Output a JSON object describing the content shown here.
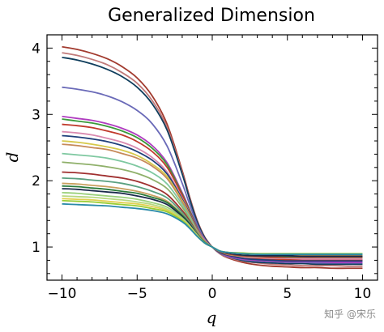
{
  "chart_data": {
    "type": "line",
    "title": "Generalized Dimension",
    "xlabel": "q",
    "ylabel": "d",
    "xlim": [
      -11,
      11
    ],
    "ylim": [
      0.5,
      4.2
    ],
    "xticks": [
      -10,
      -5,
      0,
      5,
      10
    ],
    "xtick_labels": [
      "−10",
      "−5",
      "0",
      "5",
      "10"
    ],
    "yticks": [
      1,
      2,
      3,
      4
    ],
    "ytick_labels": [
      "1",
      "2",
      "3",
      "4"
    ],
    "grid": false,
    "legend": "none",
    "x": [
      -10,
      -9,
      -8,
      -7,
      -6,
      -5,
      -4,
      -3,
      -2,
      -1.5,
      -1,
      -0.5,
      0,
      0.5,
      1,
      2,
      3,
      4,
      5,
      6,
      7,
      8,
      9,
      10
    ],
    "series": [
      {
        "color": "#a23a2e",
        "values": [
          4.02,
          3.98,
          3.92,
          3.84,
          3.72,
          3.55,
          3.28,
          2.85,
          2.15,
          1.75,
          1.4,
          1.15,
          1.0,
          0.9,
          0.84,
          0.77,
          0.73,
          0.71,
          0.7,
          0.69,
          0.69,
          0.68,
          0.68,
          0.68
        ]
      },
      {
        "color": "#c07a7a",
        "values": [
          3.93,
          3.89,
          3.83,
          3.75,
          3.63,
          3.47,
          3.21,
          2.8,
          2.12,
          1.73,
          1.39,
          1.14,
          1.0,
          0.9,
          0.85,
          0.79,
          0.76,
          0.74,
          0.73,
          0.72,
          0.72,
          0.72,
          0.71,
          0.71
        ]
      },
      {
        "color": "#0f3d5c",
        "values": [
          3.86,
          3.82,
          3.76,
          3.68,
          3.57,
          3.41,
          3.16,
          2.76,
          2.1,
          1.72,
          1.38,
          1.14,
          1.0,
          0.91,
          0.86,
          0.8,
          0.77,
          0.76,
          0.75,
          0.75,
          0.74,
          0.74,
          0.74,
          0.74
        ]
      },
      {
        "color": "#6a6ab8",
        "values": [
          3.41,
          3.38,
          3.34,
          3.28,
          3.19,
          3.06,
          2.86,
          2.52,
          1.96,
          1.64,
          1.34,
          1.12,
          1.0,
          0.91,
          0.86,
          0.81,
          0.79,
          0.78,
          0.77,
          0.77,
          0.76,
          0.76,
          0.76,
          0.76
        ]
      },
      {
        "color": "#b03cc0",
        "values": [
          2.97,
          2.94,
          2.91,
          2.86,
          2.79,
          2.69,
          2.53,
          2.27,
          1.82,
          1.56,
          1.3,
          1.11,
          1.0,
          0.92,
          0.87,
          0.82,
          0.8,
          0.79,
          0.78,
          0.78,
          0.78,
          0.77,
          0.77,
          0.77
        ]
      },
      {
        "color": "#3a9a3a",
        "values": [
          2.93,
          2.9,
          2.87,
          2.82,
          2.75,
          2.65,
          2.49,
          2.24,
          1.8,
          1.55,
          1.29,
          1.1,
          1.0,
          0.92,
          0.88,
          0.84,
          0.82,
          0.81,
          0.81,
          0.8,
          0.8,
          0.8,
          0.8,
          0.8
        ]
      },
      {
        "color": "#c0392b",
        "values": [
          2.85,
          2.83,
          2.8,
          2.75,
          2.69,
          2.59,
          2.44,
          2.2,
          1.78,
          1.53,
          1.28,
          1.1,
          1.0,
          0.92,
          0.88,
          0.84,
          0.83,
          0.82,
          0.81,
          0.81,
          0.81,
          0.81,
          0.81,
          0.81
        ]
      },
      {
        "color": "#d98ab0",
        "values": [
          2.74,
          2.72,
          2.69,
          2.64,
          2.58,
          2.49,
          2.35,
          2.13,
          1.74,
          1.51,
          1.27,
          1.1,
          1.0,
          0.93,
          0.89,
          0.85,
          0.84,
          0.83,
          0.83,
          0.82,
          0.82,
          0.82,
          0.82,
          0.82
        ]
      },
      {
        "color": "#1f3f7a",
        "values": [
          2.68,
          2.66,
          2.63,
          2.59,
          2.53,
          2.44,
          2.31,
          2.1,
          1.72,
          1.5,
          1.26,
          1.09,
          1.0,
          0.92,
          0.88,
          0.83,
          0.81,
          0.8,
          0.79,
          0.79,
          0.79,
          0.79,
          0.79,
          0.79
        ]
      },
      {
        "color": "#d6c94a",
        "values": [
          2.6,
          2.58,
          2.55,
          2.51,
          2.46,
          2.38,
          2.25,
          2.06,
          1.7,
          1.48,
          1.25,
          1.09,
          1.0,
          0.93,
          0.9,
          0.87,
          0.86,
          0.85,
          0.85,
          0.85,
          0.85,
          0.85,
          0.85,
          0.85
        ]
      },
      {
        "color": "#c68a5a",
        "values": [
          2.55,
          2.53,
          2.5,
          2.47,
          2.41,
          2.34,
          2.22,
          2.03,
          1.68,
          1.47,
          1.25,
          1.09,
          1.0,
          0.93,
          0.89,
          0.86,
          0.85,
          0.84,
          0.84,
          0.84,
          0.84,
          0.84,
          0.84,
          0.84
        ]
      },
      {
        "color": "#7ec8a0",
        "values": [
          2.41,
          2.39,
          2.37,
          2.34,
          2.29,
          2.22,
          2.12,
          1.95,
          1.64,
          1.45,
          1.23,
          1.08,
          1.0,
          0.93,
          0.9,
          0.87,
          0.86,
          0.86,
          0.85,
          0.85,
          0.85,
          0.85,
          0.85,
          0.85
        ]
      },
      {
        "color": "#8fb06a",
        "values": [
          2.28,
          2.26,
          2.24,
          2.21,
          2.17,
          2.11,
          2.02,
          1.88,
          1.6,
          1.42,
          1.22,
          1.08,
          1.0,
          0.93,
          0.9,
          0.87,
          0.86,
          0.86,
          0.86,
          0.86,
          0.86,
          0.86,
          0.86,
          0.86
        ]
      },
      {
        "color": "#a03030",
        "values": [
          2.13,
          2.12,
          2.1,
          2.07,
          2.04,
          1.99,
          1.91,
          1.79,
          1.55,
          1.39,
          1.21,
          1.07,
          1.0,
          0.93,
          0.9,
          0.87,
          0.86,
          0.85,
          0.85,
          0.85,
          0.85,
          0.85,
          0.85,
          0.85
        ]
      },
      {
        "color": "#5aa080",
        "values": [
          2.04,
          2.03,
          2.01,
          1.99,
          1.96,
          1.91,
          1.84,
          1.74,
          1.52,
          1.37,
          1.2,
          1.07,
          1.0,
          0.94,
          0.91,
          0.88,
          0.87,
          0.87,
          0.87,
          0.86,
          0.86,
          0.86,
          0.86,
          0.86
        ]
      },
      {
        "color": "#c9a060",
        "values": [
          1.96,
          1.95,
          1.93,
          1.91,
          1.88,
          1.84,
          1.78,
          1.69,
          1.49,
          1.35,
          1.19,
          1.07,
          1.0,
          0.94,
          0.91,
          0.89,
          0.88,
          0.88,
          0.87,
          0.87,
          0.87,
          0.87,
          0.87,
          0.87
        ]
      },
      {
        "color": "#2a7a3a",
        "values": [
          1.92,
          1.91,
          1.89,
          1.87,
          1.84,
          1.81,
          1.75,
          1.67,
          1.48,
          1.35,
          1.19,
          1.07,
          1.0,
          0.94,
          0.91,
          0.88,
          0.87,
          0.87,
          0.86,
          0.86,
          0.86,
          0.86,
          0.86,
          0.86
        ]
      },
      {
        "color": "#1a2a4a",
        "values": [
          1.88,
          1.87,
          1.85,
          1.83,
          1.81,
          1.77,
          1.72,
          1.64,
          1.46,
          1.34,
          1.18,
          1.06,
          1.0,
          0.94,
          0.91,
          0.88,
          0.87,
          0.87,
          0.87,
          0.86,
          0.86,
          0.86,
          0.86,
          0.86
        ]
      },
      {
        "color": "#9ad07a",
        "values": [
          1.82,
          1.81,
          1.79,
          1.77,
          1.75,
          1.72,
          1.67,
          1.6,
          1.44,
          1.32,
          1.18,
          1.06,
          1.0,
          0.94,
          0.92,
          0.9,
          0.89,
          0.89,
          0.89,
          0.89,
          0.89,
          0.89,
          0.89,
          0.89
        ]
      },
      {
        "color": "#b8d880",
        "values": [
          1.77,
          1.76,
          1.75,
          1.73,
          1.71,
          1.68,
          1.64,
          1.57,
          1.42,
          1.31,
          1.17,
          1.06,
          1.0,
          0.94,
          0.92,
          0.9,
          0.89,
          0.89,
          0.89,
          0.89,
          0.89,
          0.89,
          0.89,
          0.89
        ]
      },
      {
        "color": "#e0d050",
        "values": [
          1.73,
          1.72,
          1.71,
          1.69,
          1.67,
          1.65,
          1.61,
          1.55,
          1.41,
          1.3,
          1.17,
          1.06,
          1.0,
          0.94,
          0.92,
          0.9,
          0.9,
          0.89,
          0.89,
          0.89,
          0.89,
          0.89,
          0.89,
          0.89
        ]
      },
      {
        "color": "#9acd32",
        "values": [
          1.7,
          1.69,
          1.68,
          1.66,
          1.64,
          1.62,
          1.58,
          1.53,
          1.4,
          1.29,
          1.16,
          1.06,
          1.0,
          0.94,
          0.92,
          0.91,
          0.9,
          0.9,
          0.9,
          0.9,
          0.9,
          0.9,
          0.9,
          0.9
        ]
      },
      {
        "color": "#2a8aa8",
        "values": [
          1.65,
          1.64,
          1.63,
          1.62,
          1.6,
          1.58,
          1.55,
          1.5,
          1.38,
          1.28,
          1.16,
          1.06,
          1.0,
          0.94,
          0.92,
          0.9,
          0.89,
          0.89,
          0.89,
          0.89,
          0.89,
          0.89,
          0.89,
          0.89
        ]
      }
    ]
  },
  "watermark": "知乎 @宋乐"
}
